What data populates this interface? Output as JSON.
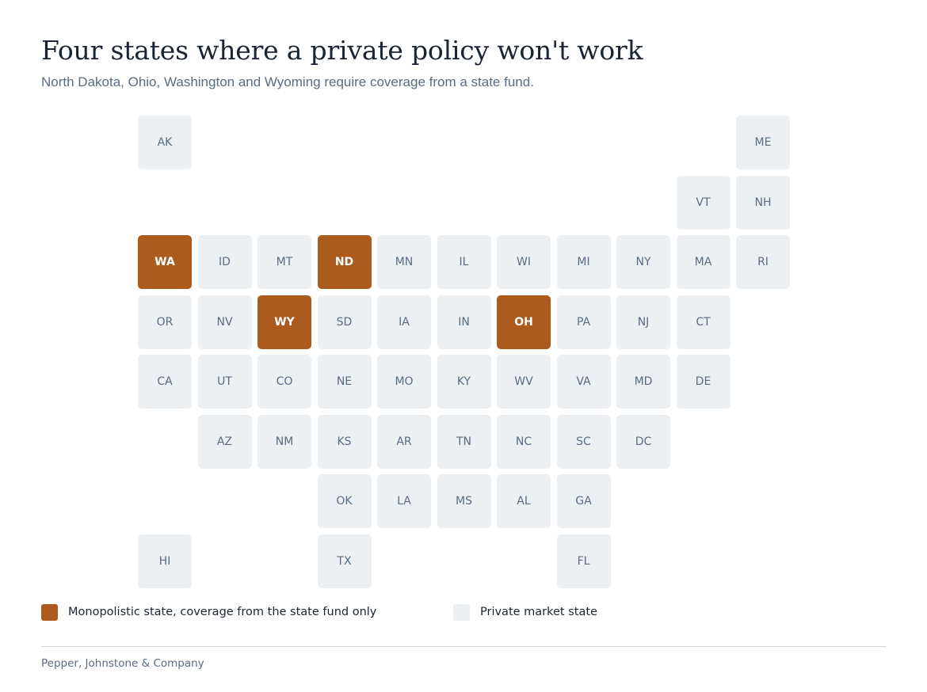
{
  "header": {
    "title": "Four states where a private policy won't work",
    "subtitle": "North Dakota, Ohio, Washington and Wyoming require coverage from a state fund."
  },
  "colors": {
    "monopolistic": "#ac5b1e",
    "private": "#edf0f3",
    "private_text": "#5a6b82",
    "monopolistic_text": "#ffffff"
  },
  "legend": {
    "monopolistic_label": "Monopolistic state, coverage from the state fund only",
    "private_label": "Private market state"
  },
  "states": [
    {
      "abbr": "AK",
      "row": 0,
      "col": 0,
      "type": "private"
    },
    {
      "abbr": "ME",
      "row": 0,
      "col": 10,
      "type": "private"
    },
    {
      "abbr": "VT",
      "row": 1,
      "col": 9,
      "type": "private"
    },
    {
      "abbr": "NH",
      "row": 1,
      "col": 10,
      "type": "private"
    },
    {
      "abbr": "WA",
      "row": 2,
      "col": 0,
      "type": "monopolistic"
    },
    {
      "abbr": "ID",
      "row": 2,
      "col": 1,
      "type": "private"
    },
    {
      "abbr": "MT",
      "row": 2,
      "col": 2,
      "type": "private"
    },
    {
      "abbr": "ND",
      "row": 2,
      "col": 3,
      "type": "monopolistic"
    },
    {
      "abbr": "MN",
      "row": 2,
      "col": 4,
      "type": "private"
    },
    {
      "abbr": "IL",
      "row": 2,
      "col": 5,
      "type": "private"
    },
    {
      "abbr": "WI",
      "row": 2,
      "col": 6,
      "type": "private"
    },
    {
      "abbr": "MI",
      "row": 2,
      "col": 7,
      "type": "private"
    },
    {
      "abbr": "NY",
      "row": 2,
      "col": 8,
      "type": "private"
    },
    {
      "abbr": "MA",
      "row": 2,
      "col": 9,
      "type": "private"
    },
    {
      "abbr": "RI",
      "row": 2,
      "col": 10,
      "type": "private"
    },
    {
      "abbr": "OR",
      "row": 3,
      "col": 0,
      "type": "private"
    },
    {
      "abbr": "NV",
      "row": 3,
      "col": 1,
      "type": "private"
    },
    {
      "abbr": "WY",
      "row": 3,
      "col": 2,
      "type": "monopolistic"
    },
    {
      "abbr": "SD",
      "row": 3,
      "col": 3,
      "type": "private"
    },
    {
      "abbr": "IA",
      "row": 3,
      "col": 4,
      "type": "private"
    },
    {
      "abbr": "IN",
      "row": 3,
      "col": 5,
      "type": "private"
    },
    {
      "abbr": "OH",
      "row": 3,
      "col": 6,
      "type": "monopolistic"
    },
    {
      "abbr": "PA",
      "row": 3,
      "col": 7,
      "type": "private"
    },
    {
      "abbr": "NJ",
      "row": 3,
      "col": 8,
      "type": "private"
    },
    {
      "abbr": "CT",
      "row": 3,
      "col": 9,
      "type": "private"
    },
    {
      "abbr": "CA",
      "row": 4,
      "col": 0,
      "type": "private"
    },
    {
      "abbr": "UT",
      "row": 4,
      "col": 1,
      "type": "private"
    },
    {
      "abbr": "CO",
      "row": 4,
      "col": 2,
      "type": "private"
    },
    {
      "abbr": "NE",
      "row": 4,
      "col": 3,
      "type": "private"
    },
    {
      "abbr": "MO",
      "row": 4,
      "col": 4,
      "type": "private"
    },
    {
      "abbr": "KY",
      "row": 4,
      "col": 5,
      "type": "private"
    },
    {
      "abbr": "WV",
      "row": 4,
      "col": 6,
      "type": "private"
    },
    {
      "abbr": "VA",
      "row": 4,
      "col": 7,
      "type": "private"
    },
    {
      "abbr": "MD",
      "row": 4,
      "col": 8,
      "type": "private"
    },
    {
      "abbr": "DE",
      "row": 4,
      "col": 9,
      "type": "private"
    },
    {
      "abbr": "AZ",
      "row": 5,
      "col": 1,
      "type": "private"
    },
    {
      "abbr": "NM",
      "row": 5,
      "col": 2,
      "type": "private"
    },
    {
      "abbr": "KS",
      "row": 5,
      "col": 3,
      "type": "private"
    },
    {
      "abbr": "AR",
      "row": 5,
      "col": 4,
      "type": "private"
    },
    {
      "abbr": "TN",
      "row": 5,
      "col": 5,
      "type": "private"
    },
    {
      "abbr": "NC",
      "row": 5,
      "col": 6,
      "type": "private"
    },
    {
      "abbr": "SC",
      "row": 5,
      "col": 7,
      "type": "private"
    },
    {
      "abbr": "DC",
      "row": 5,
      "col": 8,
      "type": "private"
    },
    {
      "abbr": "OK",
      "row": 6,
      "col": 3,
      "type": "private"
    },
    {
      "abbr": "LA",
      "row": 6,
      "col": 4,
      "type": "private"
    },
    {
      "abbr": "MS",
      "row": 6,
      "col": 5,
      "type": "private"
    },
    {
      "abbr": "AL",
      "row": 6,
      "col": 6,
      "type": "private"
    },
    {
      "abbr": "GA",
      "row": 6,
      "col": 7,
      "type": "private"
    },
    {
      "abbr": "HI",
      "row": 7,
      "col": 0,
      "type": "private"
    },
    {
      "abbr": "TX",
      "row": 7,
      "col": 3,
      "type": "private"
    },
    {
      "abbr": "FL",
      "row": 7,
      "col": 7,
      "type": "private"
    }
  ],
  "footer": {
    "source": "Pepper, Johnstone & Company"
  }
}
